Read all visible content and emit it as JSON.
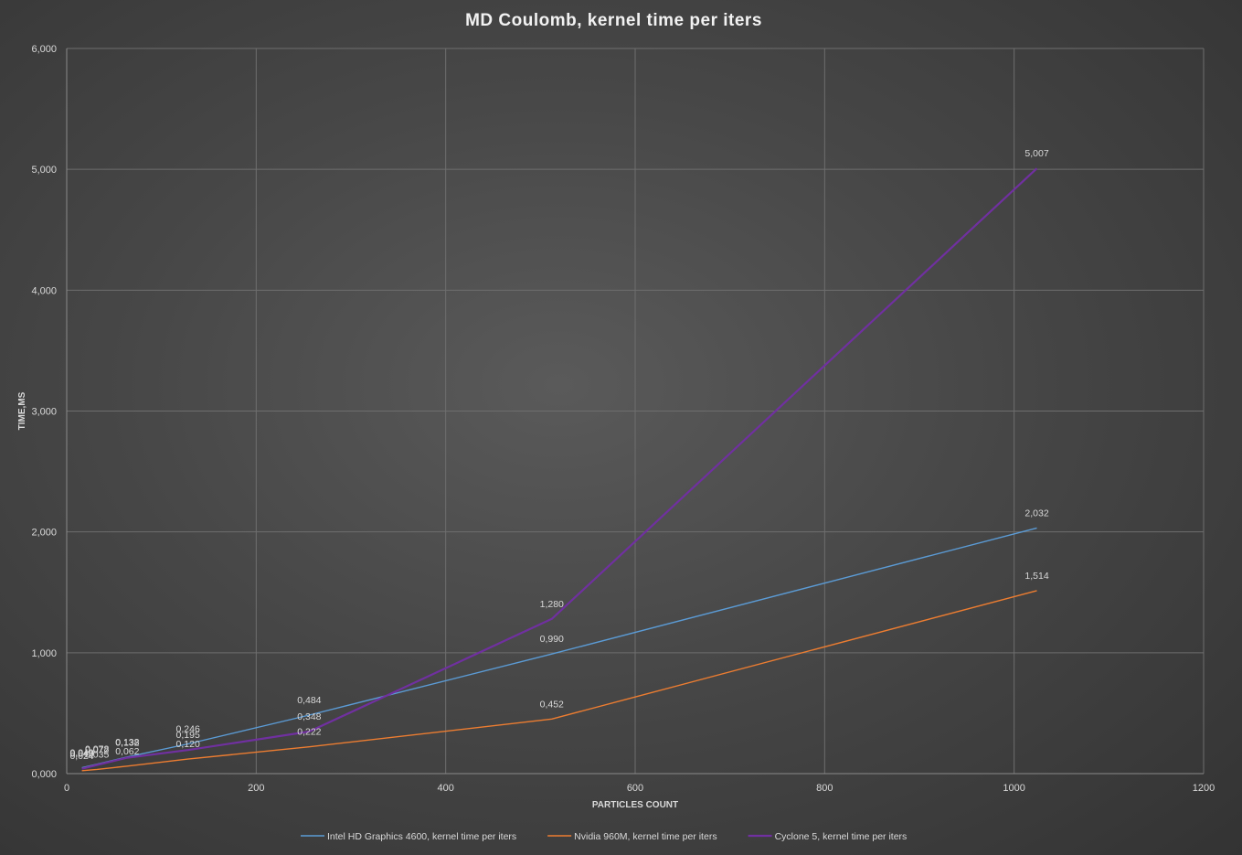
{
  "chart_data": {
    "type": "line",
    "title": "MD Coulomb,  kernel  time  per  iters",
    "xlabel": "PARTICLES COUNT",
    "ylabel": "TIME,MS",
    "xlim": [
      0,
      1200
    ],
    "ylim": [
      0,
      6
    ],
    "x_ticks": [
      "0",
      "200",
      "400",
      "600",
      "800",
      "1000",
      "1200"
    ],
    "y_ticks": [
      "0,000",
      "1,000",
      "2,000",
      "3,000",
      "4,000",
      "5,000",
      "6,000"
    ],
    "grid": true,
    "legend_position": "bottom",
    "series": [
      {
        "name": "Intel HD Graphics 4600, kernel time per iters",
        "color": "#5b9bd5",
        "x": [
          16,
          32,
          64,
          128,
          256,
          512,
          1024
        ],
        "values": [
          0.049,
          0.078,
          0.138,
          0.246,
          0.484,
          0.99,
          2.032
        ],
        "labels": [
          "0,049",
          "0,078",
          "0,138",
          "0,246",
          "0,484",
          "0,990",
          "2,032"
        ]
      },
      {
        "name": "Nvidia 960M, kernel time per iters",
        "color": "#ed7d31",
        "x": [
          16,
          32,
          64,
          128,
          256,
          512,
          1024
        ],
        "values": [
          0.024,
          0.035,
          0.062,
          0.12,
          0.222,
          0.452,
          1.514
        ],
        "labels": [
          "0,024",
          "0,035",
          "0,062",
          "0,120",
          "0,222",
          "0,452",
          "1,514"
        ]
      },
      {
        "name": "Cyclone 5, kernel time per iters",
        "color": "#7030a0",
        "x": [
          16,
          32,
          64,
          128,
          256,
          512,
          1024
        ],
        "values": [
          0.04,
          0.072,
          0.132,
          0.195,
          0.348,
          1.28,
          5.007
        ],
        "labels": [
          "0,040",
          "0,072",
          "0,132",
          "0,195",
          "0,348",
          "1,280",
          "5,007"
        ]
      }
    ]
  }
}
